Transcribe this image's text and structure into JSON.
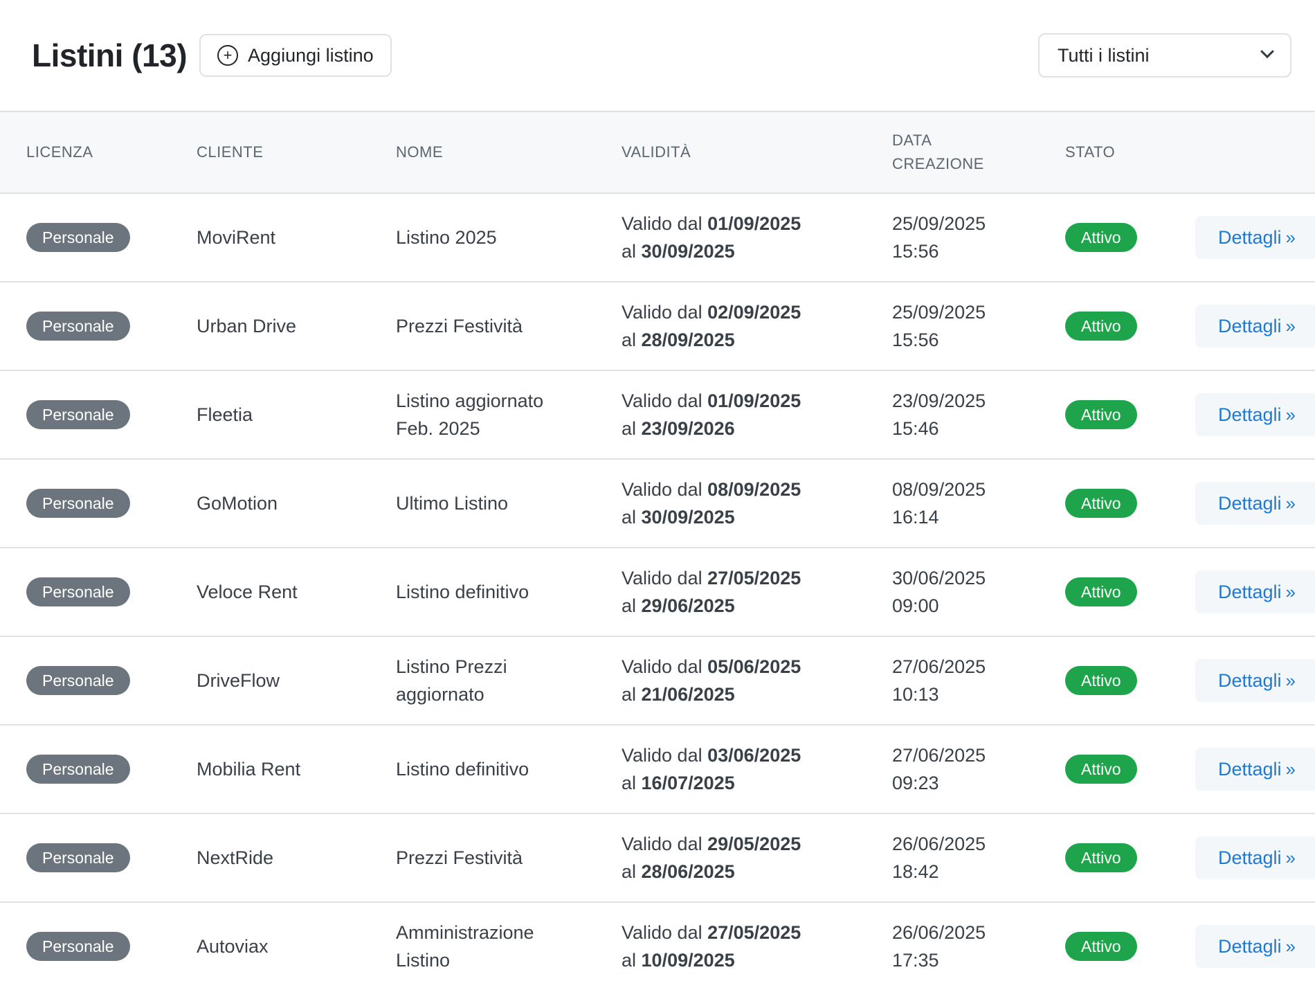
{
  "header": {
    "title": "Listini (13)",
    "add_label": "Aggiungi listino",
    "add_icon": "plus-circle-icon",
    "filter": {
      "selected": "Tutti i listini",
      "icon": "chevron-down-icon"
    }
  },
  "table": {
    "columns": {
      "licenza": "LICENZA",
      "cliente": "CLIENTE",
      "nome": "NOME",
      "validita": "VALIDITÀ",
      "data_line1": "DATA",
      "data_line2": "CREAZIONE",
      "stato": "STATO"
    },
    "details_label": "Dettagli",
    "details_icon": "»",
    "validita_prefix": "Valido dal",
    "validita_middle": "al",
    "rows": [
      {
        "licenza": "Personale",
        "cliente": "MoviRent",
        "nome_1": "Listino 2025",
        "nome_2": "",
        "dal": "01/09/2025",
        "al": "30/09/2025",
        "data": "25/09/2025",
        "ora": "15:56",
        "stato": "Attivo"
      },
      {
        "licenza": "Personale",
        "cliente": "Urban Drive",
        "nome_1": "Prezzi Festività",
        "nome_2": "",
        "dal": "02/09/2025",
        "al": "28/09/2025",
        "data": "25/09/2025",
        "ora": "15:56",
        "stato": "Attivo"
      },
      {
        "licenza": "Personale",
        "cliente": "Fleetia",
        "nome_1": "Listino aggiornato",
        "nome_2": "Feb. 2025",
        "dal": "01/09/2025",
        "al": "23/09/2026",
        "data": "23/09/2025",
        "ora": "15:46",
        "stato": "Attivo"
      },
      {
        "licenza": "Personale",
        "cliente": "GoMotion",
        "nome_1": "Ultimo Listino",
        "nome_2": "",
        "dal": "08/09/2025",
        "al": "30/09/2025",
        "data": "08/09/2025",
        "ora": "16:14",
        "stato": "Attivo"
      },
      {
        "licenza": "Personale",
        "cliente": "Veloce Rent",
        "nome_1": "Listino definitivo",
        "nome_2": "",
        "dal": "27/05/2025",
        "al": "29/06/2025",
        "data": "30/06/2025",
        "ora": "09:00",
        "stato": "Attivo"
      },
      {
        "licenza": "Personale",
        "cliente": "DriveFlow",
        "nome_1": "Listino Prezzi",
        "nome_2": "aggiornato",
        "dal": "05/06/2025",
        "al": "21/06/2025",
        "data": "27/06/2025",
        "ora": "10:13",
        "stato": "Attivo"
      },
      {
        "licenza": "Personale",
        "cliente": "Mobilia Rent",
        "nome_1": "Listino definitivo",
        "nome_2": "",
        "dal": "03/06/2025",
        "al": "16/07/2025",
        "data": "27/06/2025",
        "ora": "09:23",
        "stato": "Attivo"
      },
      {
        "licenza": "Personale",
        "cliente": "NextRide",
        "nome_1": "Prezzi Festività",
        "nome_2": "",
        "dal": "29/05/2025",
        "al": "28/06/2025",
        "data": "26/06/2025",
        "ora": "18:42",
        "stato": "Attivo"
      },
      {
        "licenza": "Personale",
        "cliente": "Autoviax",
        "nome_1": "Amministrazione",
        "nome_2": "Listino",
        "dal": "27/05/2025",
        "al": "10/09/2025",
        "data": "26/06/2025",
        "ora": "17:35",
        "stato": "Attivo"
      }
    ]
  }
}
